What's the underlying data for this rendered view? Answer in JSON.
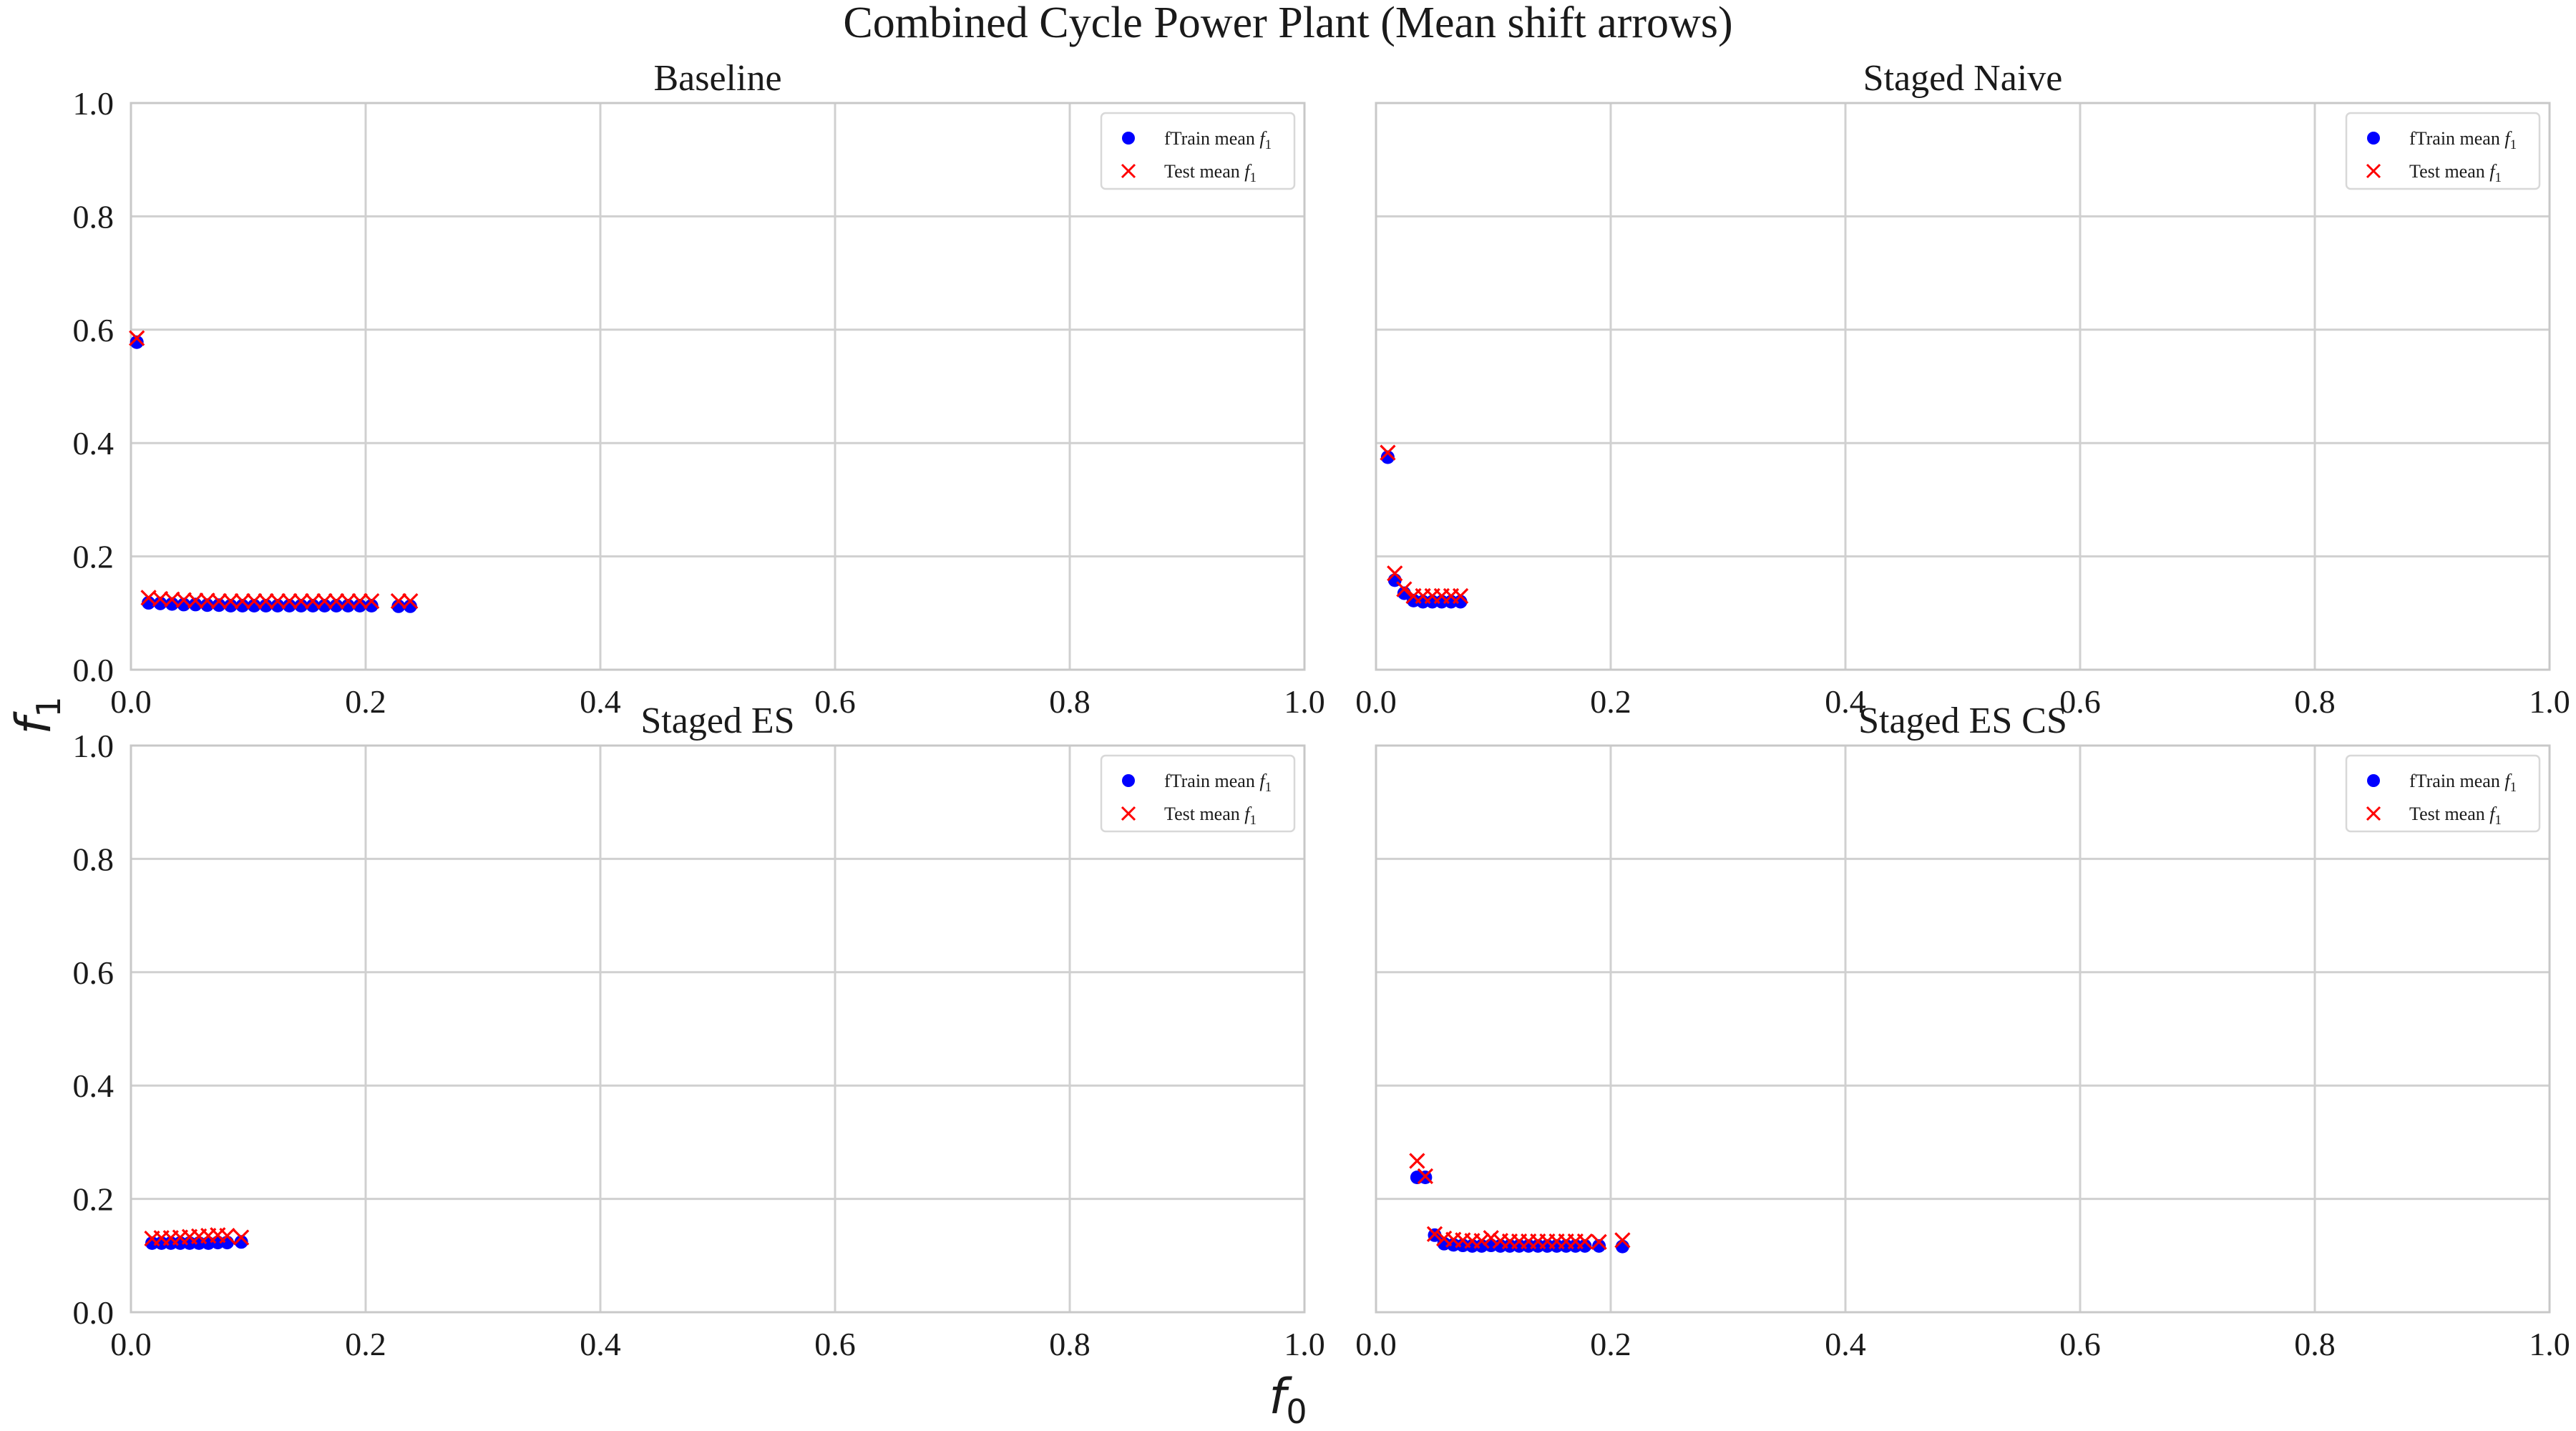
{
  "figure": {
    "title": "Combined Cycle Power Plant (Mean shift arrows)",
    "xlabel": "f",
    "xlabel_sub": "0",
    "ylabel": "f",
    "ylabel_sub": "1"
  },
  "colors": {
    "train": "#0000ff",
    "test": "#ff0000",
    "grid": "#d0d0d0",
    "axes_edge": "#c8c8c8"
  },
  "chart_data": [
    {
      "type": "scatter",
      "title": "Baseline",
      "xlim": [
        0,
        1
      ],
      "ylim": [
        0,
        1
      ],
      "xticks": [
        "0.0",
        "0.2",
        "0.4",
        "0.6",
        "0.8",
        "1.0"
      ],
      "yticks": [
        "0.0",
        "0.2",
        "0.4",
        "0.6",
        "0.8",
        "1.0"
      ],
      "grid": true,
      "legend_position": "top-right",
      "series": [
        {
          "name": "fTrain mean f₁",
          "legend_text": "fTrain mean ",
          "legend_sub": "1",
          "marker": "circle",
          "color": "#0000ff",
          "points": [
            [
              0.005,
              0.578
            ],
            [
              0.015,
              0.118
            ],
            [
              0.025,
              0.117
            ],
            [
              0.035,
              0.116
            ],
            [
              0.045,
              0.115
            ],
            [
              0.055,
              0.115
            ],
            [
              0.065,
              0.114
            ],
            [
              0.075,
              0.114
            ],
            [
              0.085,
              0.113
            ],
            [
              0.095,
              0.113
            ],
            [
              0.105,
              0.113
            ],
            [
              0.115,
              0.113
            ],
            [
              0.125,
              0.113
            ],
            [
              0.135,
              0.113
            ],
            [
              0.145,
              0.113
            ],
            [
              0.155,
              0.113
            ],
            [
              0.165,
              0.113
            ],
            [
              0.175,
              0.113
            ],
            [
              0.185,
              0.113
            ],
            [
              0.195,
              0.113
            ],
            [
              0.205,
              0.113
            ],
            [
              0.228,
              0.112
            ],
            [
              0.238,
              0.112
            ]
          ]
        },
        {
          "name": "Test mean f₁",
          "legend_text": "Test mean ",
          "legend_sub": "1",
          "marker": "x",
          "color": "#ff0000",
          "points": [
            [
              0.005,
              0.585
            ],
            [
              0.015,
              0.127
            ],
            [
              0.025,
              0.125
            ],
            [
              0.035,
              0.124
            ],
            [
              0.045,
              0.123
            ],
            [
              0.055,
              0.122
            ],
            [
              0.065,
              0.122
            ],
            [
              0.075,
              0.121
            ],
            [
              0.085,
              0.121
            ],
            [
              0.095,
              0.121
            ],
            [
              0.105,
              0.121
            ],
            [
              0.115,
              0.121
            ],
            [
              0.125,
              0.121
            ],
            [
              0.135,
              0.121
            ],
            [
              0.145,
              0.121
            ],
            [
              0.155,
              0.121
            ],
            [
              0.165,
              0.121
            ],
            [
              0.175,
              0.121
            ],
            [
              0.185,
              0.121
            ],
            [
              0.195,
              0.121
            ],
            [
              0.205,
              0.121
            ],
            [
              0.228,
              0.121
            ],
            [
              0.238,
              0.121
            ]
          ]
        }
      ]
    },
    {
      "type": "scatter",
      "title": "Staged Naive",
      "xlim": [
        0,
        1
      ],
      "ylim": [
        0,
        1
      ],
      "xticks": [
        "0.0",
        "0.2",
        "0.4",
        "0.6",
        "0.8",
        "1.0"
      ],
      "yticks": [],
      "grid": true,
      "legend_position": "top-right",
      "series": [
        {
          "name": "fTrain mean f₁",
          "legend_text": "fTrain mean ",
          "legend_sub": "1",
          "marker": "circle",
          "color": "#0000ff",
          "points": [
            [
              0.01,
              0.375
            ],
            [
              0.016,
              0.158
            ],
            [
              0.024,
              0.135
            ],
            [
              0.032,
              0.122
            ],
            [
              0.04,
              0.12
            ],
            [
              0.048,
              0.12
            ],
            [
              0.056,
              0.12
            ],
            [
              0.064,
              0.12
            ],
            [
              0.072,
              0.12
            ]
          ]
        },
        {
          "name": "Test mean f₁",
          "legend_text": "Test mean ",
          "legend_sub": "1",
          "marker": "x",
          "color": "#ff0000",
          "points": [
            [
              0.01,
              0.383
            ],
            [
              0.016,
              0.17
            ],
            [
              0.024,
              0.142
            ],
            [
              0.032,
              0.13
            ],
            [
              0.04,
              0.13
            ],
            [
              0.048,
              0.13
            ],
            [
              0.056,
              0.13
            ],
            [
              0.064,
              0.13
            ],
            [
              0.072,
              0.13
            ]
          ]
        }
      ]
    },
    {
      "type": "scatter",
      "title": "Staged ES",
      "xlim": [
        0,
        1
      ],
      "ylim": [
        0,
        1
      ],
      "xticks": [
        "0.0",
        "0.2",
        "0.4",
        "0.6",
        "0.8",
        "1.0"
      ],
      "yticks": [
        "0.0",
        "0.2",
        "0.4",
        "0.6",
        "0.8",
        "1.0"
      ],
      "grid": true,
      "legend_position": "top-right",
      "series": [
        {
          "name": "fTrain mean f₁",
          "legend_text": "fTrain mean ",
          "legend_sub": "1",
          "marker": "circle",
          "color": "#0000ff",
          "points": [
            [
              0.018,
              0.122
            ],
            [
              0.026,
              0.122
            ],
            [
              0.034,
              0.122
            ],
            [
              0.042,
              0.122
            ],
            [
              0.05,
              0.122
            ],
            [
              0.058,
              0.122
            ],
            [
              0.066,
              0.122
            ],
            [
              0.074,
              0.123
            ],
            [
              0.082,
              0.123
            ],
            [
              0.094,
              0.124
            ]
          ]
        },
        {
          "name": "Test mean f₁",
          "legend_text": "Test mean ",
          "legend_sub": "1",
          "marker": "x",
          "color": "#ff0000",
          "points": [
            [
              0.018,
              0.13
            ],
            [
              0.026,
              0.131
            ],
            [
              0.034,
              0.131
            ],
            [
              0.042,
              0.132
            ],
            [
              0.05,
              0.133
            ],
            [
              0.058,
              0.134
            ],
            [
              0.066,
              0.135
            ],
            [
              0.074,
              0.136
            ],
            [
              0.082,
              0.135
            ],
            [
              0.094,
              0.132
            ]
          ]
        }
      ]
    },
    {
      "type": "scatter",
      "title": "Staged ES CS",
      "xlim": [
        0,
        1
      ],
      "ylim": [
        0,
        1
      ],
      "xticks": [
        "0.0",
        "0.2",
        "0.4",
        "0.6",
        "0.8",
        "1.0"
      ],
      "yticks": [],
      "grid": true,
      "legend_position": "top-right",
      "series": [
        {
          "name": "fTrain mean f₁",
          "legend_text": "fTrain mean ",
          "legend_sub": "1",
          "marker": "circle",
          "color": "#0000ff",
          "points": [
            [
              0.035,
              0.238
            ],
            [
              0.042,
              0.238
            ],
            [
              0.05,
              0.136
            ],
            [
              0.058,
              0.121
            ],
            [
              0.066,
              0.119
            ],
            [
              0.074,
              0.118
            ],
            [
              0.082,
              0.117
            ],
            [
              0.09,
              0.117
            ],
            [
              0.098,
              0.118
            ],
            [
              0.106,
              0.117
            ],
            [
              0.114,
              0.117
            ],
            [
              0.122,
              0.117
            ],
            [
              0.13,
              0.117
            ],
            [
              0.138,
              0.117
            ],
            [
              0.146,
              0.117
            ],
            [
              0.154,
              0.117
            ],
            [
              0.162,
              0.117
            ],
            [
              0.17,
              0.117
            ],
            [
              0.178,
              0.117
            ],
            [
              0.19,
              0.117
            ],
            [
              0.21,
              0.116
            ]
          ]
        },
        {
          "name": "Test mean f₁",
          "legend_text": "Test mean ",
          "legend_sub": "1",
          "marker": "x",
          "color": "#ff0000",
          "points": [
            [
              0.035,
              0.267
            ],
            [
              0.042,
              0.24
            ],
            [
              0.05,
              0.138
            ],
            [
              0.058,
              0.13
            ],
            [
              0.066,
              0.128
            ],
            [
              0.074,
              0.127
            ],
            [
              0.082,
              0.126
            ],
            [
              0.09,
              0.126
            ],
            [
              0.098,
              0.131
            ],
            [
              0.106,
              0.126
            ],
            [
              0.114,
              0.125
            ],
            [
              0.122,
              0.125
            ],
            [
              0.13,
              0.125
            ],
            [
              0.138,
              0.125
            ],
            [
              0.146,
              0.125
            ],
            [
              0.154,
              0.125
            ],
            [
              0.162,
              0.125
            ],
            [
              0.17,
              0.125
            ],
            [
              0.178,
              0.125
            ],
            [
              0.19,
              0.124
            ],
            [
              0.21,
              0.127
            ]
          ]
        }
      ]
    }
  ]
}
